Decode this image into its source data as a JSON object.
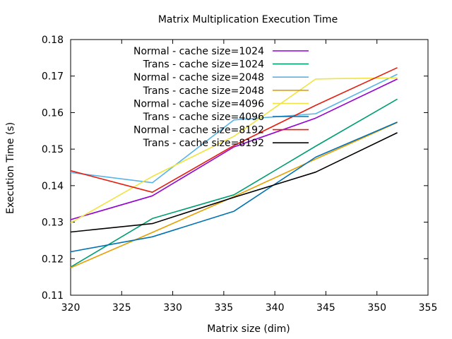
{
  "chart_data": {
    "type": "line",
    "title": "Matrix Multiplication Execution Time",
    "xlabel": "Matrix size (dim)",
    "ylabel": "Execution Time (s)",
    "xlim": [
      320,
      355
    ],
    "ylim": [
      0.11,
      0.18
    ],
    "x_ticks": [
      "320",
      "325",
      "330",
      "335",
      "340",
      "345",
      "350",
      "355"
    ],
    "y_ticks": [
      "0.11",
      "0.12",
      "0.13",
      "0.14",
      "0.15",
      "0.16",
      "0.17",
      "0.18"
    ],
    "grid": false,
    "legend_position": "top-left",
    "series": [
      {
        "name": "Normal - cache size=1024",
        "color": "#9400d3",
        "x": [
          320,
          328,
          336,
          344,
          352
        ],
        "y": [
          0.1307,
          0.1372,
          0.1506,
          0.1585,
          0.1692
        ]
      },
      {
        "name": "Trans - cache size=1024",
        "color": "#009e73",
        "x": [
          320,
          328,
          336,
          344,
          352
        ],
        "y": [
          0.1177,
          0.131,
          0.1375,
          0.1508,
          0.1637
        ]
      },
      {
        "name": "Normal - cache size=2048",
        "color": "#56b4e9",
        "x": [
          320,
          328,
          336,
          344,
          352
        ],
        "y": [
          0.1436,
          0.1408,
          0.158,
          0.1597,
          0.1705
        ]
      },
      {
        "name": "Trans - cache size=2048",
        "color": "#e69f00",
        "x": [
          320,
          328,
          336,
          344,
          352
        ],
        "y": [
          0.1175,
          0.1272,
          0.137,
          0.1473,
          0.1573
        ]
      },
      {
        "name": "Normal - cache size=4096",
        "color": "#f0e442",
        "x": [
          320,
          328,
          336,
          344,
          346,
          352
        ],
        "y": [
          0.1298,
          0.1425,
          0.1535,
          0.1692,
          0.1693,
          0.1695
        ]
      },
      {
        "name": "Trans - cache size=4096",
        "color": "#0072b2",
        "x": [
          320,
          328,
          336,
          344,
          352
        ],
        "y": [
          0.1219,
          0.126,
          0.133,
          0.1478,
          0.1574
        ]
      },
      {
        "name": "Normal - cache size=8192",
        "color": "#e51e10",
        "x": [
          320,
          328,
          336,
          344,
          352
        ],
        "y": [
          0.1441,
          0.1382,
          0.151,
          0.162,
          0.1723
        ]
      },
      {
        "name": "Trans - cache size=8192",
        "color": "#000000",
        "x": [
          320,
          328,
          336,
          344,
          352
        ],
        "y": [
          0.1273,
          0.1296,
          0.1368,
          0.1437,
          0.1545
        ]
      }
    ]
  }
}
